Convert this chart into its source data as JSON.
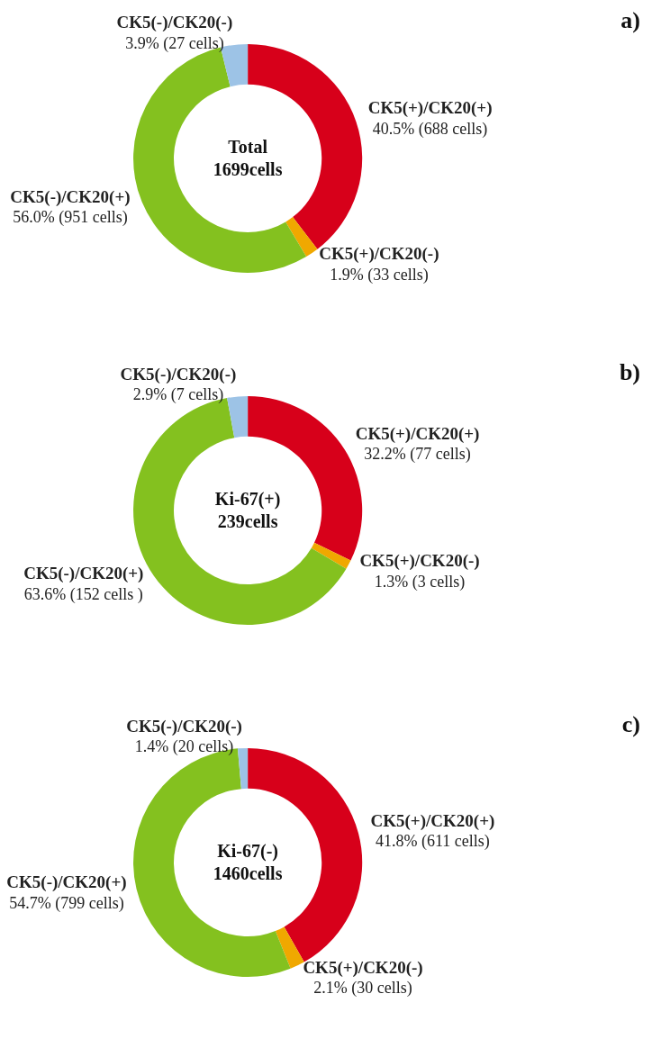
{
  "chart_data": [
    {
      "type": "donut",
      "title": "a)",
      "annotations": [
        "Total\n1699cells"
      ],
      "categories": [
        "CK5(+)/CK20(+)",
        "CK5(+)/CK20(-)",
        "CK5(-)/CK20(+)",
        "CK5(-)/CK20(-)"
      ],
      "values": [
        40.5,
        1.9,
        56.0,
        3.9
      ],
      "value_labels": [
        "40.5% (688 cells)",
        "1.9% (33 cells)",
        "56.0% (951 cells)",
        "3.9% (27 cells)"
      ],
      "colors": [
        "#d7001a",
        "#f0a800",
        "#84c11f",
        "#9dc3e6"
      ]
    },
    {
      "type": "donut",
      "title": "b)",
      "annotations": [
        "Ki-67(+)\n239cells"
      ],
      "categories": [
        "CK5(+)/CK20(+)",
        "CK5(+)/CK20(-)",
        "CK5(-)/CK20(+)",
        "CK5(-)/CK20(-)"
      ],
      "values": [
        32.2,
        1.3,
        63.6,
        2.9
      ],
      "value_labels": [
        "32.2% (77 cells)",
        "1.3% (3 cells)",
        "63.6% (152 cells )",
        "2.9% (7 cells)"
      ],
      "colors": [
        "#d7001a",
        "#f0a800",
        "#84c11f",
        "#9dc3e6"
      ]
    },
    {
      "type": "donut",
      "title": "c)",
      "annotations": [
        "Ki-67(-)\n1460cells"
      ],
      "categories": [
        "CK5(+)/CK20(+)",
        "CK5(+)/CK20(-)",
        "CK5(-)/CK20(+)",
        "CK5(-)/CK20(-)"
      ],
      "values": [
        41.8,
        2.1,
        54.7,
        1.4
      ],
      "value_labels": [
        "41.8% (611 cells)",
        "2.1% (30 cells)",
        "54.7% (799 cells)",
        "1.4% (20 cells)"
      ],
      "colors": [
        "#d7001a",
        "#f0a800",
        "#84c11f",
        "#9dc3e6"
      ]
    }
  ]
}
